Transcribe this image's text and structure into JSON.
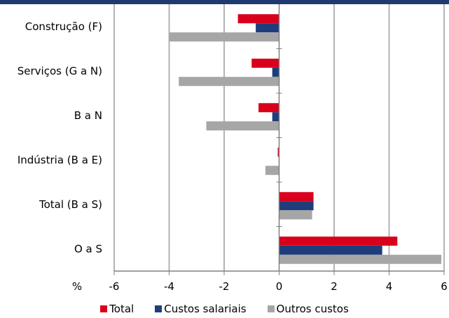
{
  "chart_data": {
    "type": "bar",
    "orientation": "horizontal",
    "categories": [
      "Construção (F)",
      "Serviços (G a N)",
      "B a N",
      "Indústria (B a E)",
      "Total (B a S)",
      "O a S"
    ],
    "series": [
      {
        "name": "Total",
        "color": "#d9001b",
        "values": [
          -1.5,
          -1.0,
          -0.75,
          -0.05,
          1.25,
          4.3
        ]
      },
      {
        "name": "Custos salariais",
        "color": "#1f3d7a",
        "values": [
          -0.85,
          -0.25,
          -0.25,
          0.0,
          1.25,
          3.75
        ]
      },
      {
        "name": "Outros custos",
        "color": "#a6a6a6",
        "values": [
          -4.0,
          -3.65,
          -2.65,
          -0.5,
          1.2,
          5.9
        ]
      }
    ],
    "xunit": "%",
    "xlim": [
      -6,
      6
    ],
    "xticks": [
      "-6",
      "-4",
      "-2",
      "0",
      "2",
      "4",
      "6"
    ],
    "grid": true,
    "legend_position": "bottom"
  }
}
